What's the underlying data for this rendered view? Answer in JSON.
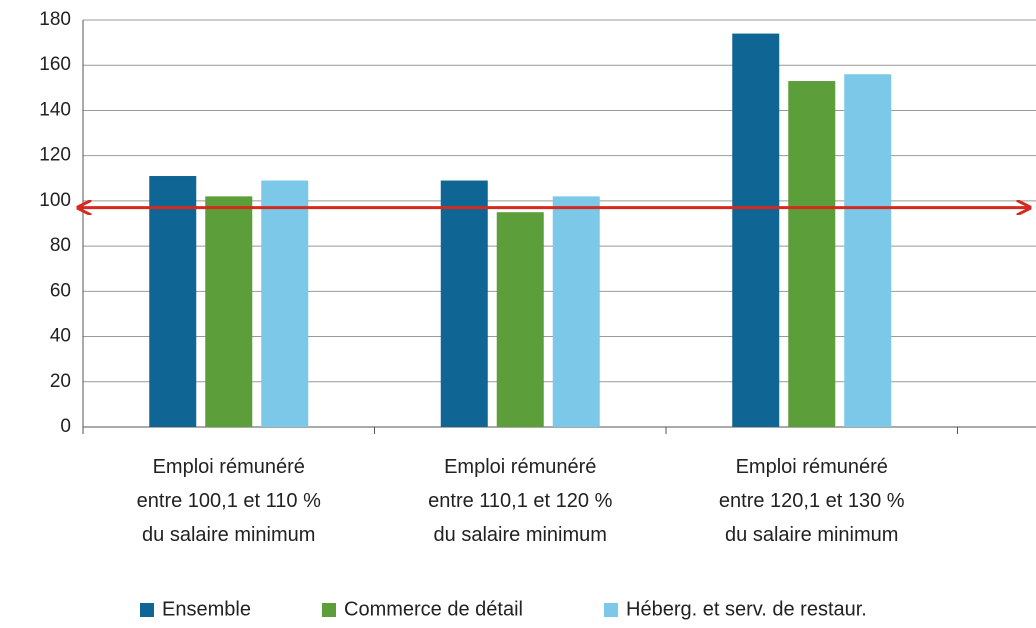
{
  "chart_data": {
    "type": "bar",
    "categories": [
      "Emploi rémunéré\nentre 100,1 et 110 %\ndu salaire minimum",
      "Emploi rémunéré\nentre 110,1 et 120 %\ndu salaire minimum",
      "Emploi rémunéré\nentre 120,1 et 130 %\ndu salaire minimum"
    ],
    "series": [
      {
        "name": "Ensemble",
        "color": "#0f6593",
        "values": [
          111,
          109,
          174
        ]
      },
      {
        "name": "Commerce de détail",
        "color": "#5b9e3a",
        "values": [
          102,
          95,
          153
        ]
      },
      {
        "name": "Héberg. et serv. de restaur.",
        "color": "#7cc8e8",
        "values": [
          109,
          102,
          156
        ]
      }
    ],
    "ylim": [
      0,
      180
    ],
    "yticks": [
      0,
      20,
      40,
      60,
      80,
      100,
      120,
      140,
      160,
      180
    ],
    "grid": true,
    "reference_line": {
      "value": 97,
      "color": "#d42a1f"
    }
  }
}
